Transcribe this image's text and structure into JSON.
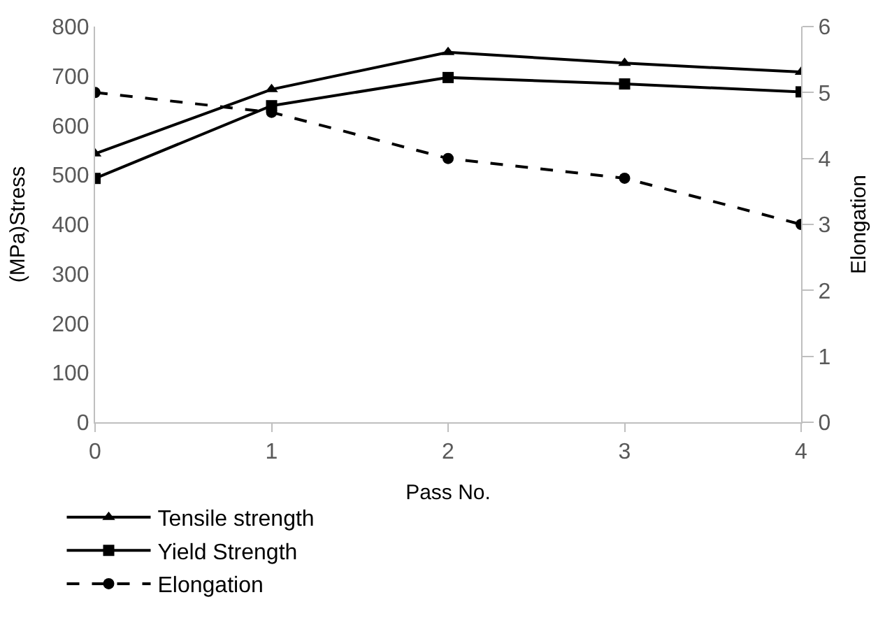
{
  "chart_data": {
    "type": "line",
    "xlabel": "Pass No.",
    "ylabel": "(MPa)Stress",
    "y2label": "Elongation",
    "x": [
      0,
      1,
      2,
      3,
      4
    ],
    "series": [
      {
        "name": "Tensile strength",
        "color": "#000000",
        "values": [
          543,
          673,
          748,
          726,
          708
        ],
        "marker": "triangle",
        "line_style": "solid"
      },
      {
        "name": "Yield Strength",
        "color": "#000000",
        "values": [
          493,
          640,
          697,
          684,
          668
        ],
        "marker": "square",
        "line_style": "solid"
      },
      {
        "name": "Elongation",
        "color": "#000000",
        "values": [
          5.0,
          4.7,
          4.0,
          3.7,
          3.0
        ],
        "marker": "circle",
        "line_style": "dashed",
        "axis": "y2"
      }
    ],
    "xlim": [
      0,
      4
    ],
    "xticks": [
      0,
      1,
      2,
      3,
      4
    ],
    "ylim": [
      0,
      800
    ],
    "yticks": [
      0,
      100,
      200,
      300,
      400,
      500,
      600,
      700,
      800
    ],
    "y2lim": [
      0,
      6
    ],
    "y2ticks": [
      0,
      1,
      2,
      3,
      4,
      5,
      6
    ],
    "legend": "bottom"
  }
}
